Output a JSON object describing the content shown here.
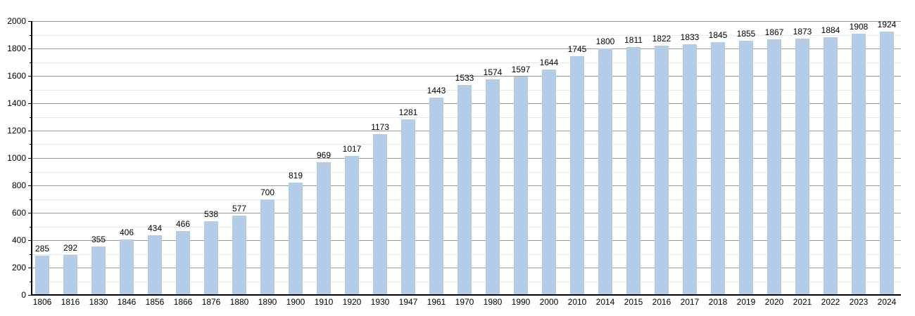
{
  "chart_data": {
    "type": "bar",
    "title": "",
    "xlabel": "",
    "ylabel": "",
    "categories": [
      "1806",
      "1816",
      "1830",
      "1846",
      "1856",
      "1866",
      "1876",
      "1880",
      "1890",
      "1900",
      "1910",
      "1920",
      "1930",
      "1947",
      "1961",
      "1970",
      "1980",
      "1990",
      "2000",
      "2010",
      "2014",
      "2015",
      "2016",
      "2017",
      "2018",
      "2019",
      "2020",
      "2021",
      "2022",
      "2023",
      "2024"
    ],
    "values": [
      285,
      292,
      355,
      406,
      434,
      466,
      538,
      577,
      700,
      819,
      969,
      1017,
      1173,
      1281,
      1443,
      1533,
      1574,
      1597,
      1644,
      1745,
      1800,
      1811,
      1822,
      1833,
      1845,
      1855,
      1867,
      1873,
      1884,
      1908,
      1924
    ],
    "value_labels": [
      "285",
      "292",
      "355",
      "406",
      "434",
      "466",
      "538",
      "577",
      "700",
      "819",
      "969",
      "1017",
      "1173",
      "1281",
      "1443",
      "1533",
      "1574",
      "1597",
      "1644",
      "1745",
      "1800",
      "1811",
      "1822",
      "1833",
      "1845",
      "1855",
      "1867",
      "1873",
      "1884",
      "1908",
      "1924"
    ],
    "y_ticks": [
      "0",
      "200",
      "400",
      "600",
      "800",
      "1000",
      "1200",
      "1400",
      "1600",
      "1800",
      "2000"
    ],
    "ylim": [
      0,
      2000
    ],
    "y_major_step": 200,
    "y_minor_step": 100,
    "grid": true,
    "legend": "none",
    "colors": {
      "bar_fill": "#b5cce6",
      "major_grid": "#999999",
      "minor_grid": "#e9e9e9",
      "axis": "#000000",
      "text": "#000000",
      "background": "#ffffff"
    }
  }
}
